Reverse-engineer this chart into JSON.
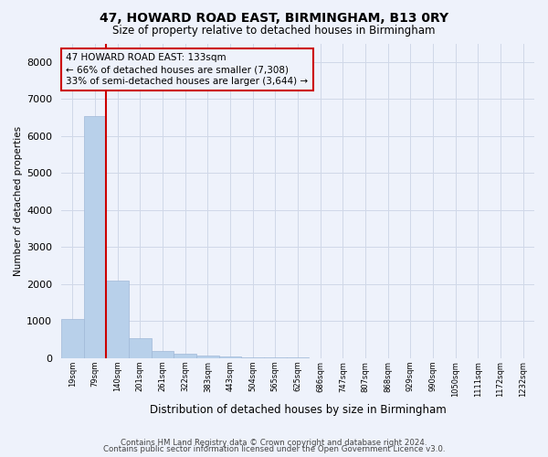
{
  "title": "47, HOWARD ROAD EAST, BIRMINGHAM, B13 0RY",
  "subtitle": "Size of property relative to detached houses in Birmingham",
  "xlabel": "Distribution of detached houses by size in Birmingham",
  "ylabel": "Number of detached properties",
  "categories": [
    "19sqm",
    "79sqm",
    "140sqm",
    "201sqm",
    "261sqm",
    "322sqm",
    "383sqm",
    "443sqm",
    "504sqm",
    "565sqm",
    "625sqm",
    "686sqm",
    "747sqm",
    "807sqm",
    "868sqm",
    "929sqm",
    "990sqm",
    "1050sqm",
    "1111sqm",
    "1172sqm",
    "1232sqm"
  ],
  "values": [
    1050,
    6550,
    2100,
    530,
    200,
    130,
    70,
    40,
    20,
    10,
    10,
    0,
    0,
    0,
    0,
    0,
    0,
    0,
    0,
    0,
    0
  ],
  "bar_color": "#b8d0ea",
  "bar_edge_color": "#a0b8d8",
  "highlight_line_color": "#cc0000",
  "red_line_index": 1.5,
  "property_label": "47 HOWARD ROAD EAST: 133sqm",
  "line1": "← 66% of detached houses are smaller (7,308)",
  "line2": "33% of semi-detached houses are larger (3,644) →",
  "annotation_box_color": "#cc0000",
  "ylim": [
    0,
    8500
  ],
  "yticks": [
    0,
    1000,
    2000,
    3000,
    4000,
    5000,
    6000,
    7000,
    8000
  ],
  "footer1": "Contains HM Land Registry data © Crown copyright and database right 2024.",
  "footer2": "Contains public sector information licensed under the Open Government Licence v3.0.",
  "background_color": "#eef2fb",
  "grid_color": "#d0d8e8"
}
